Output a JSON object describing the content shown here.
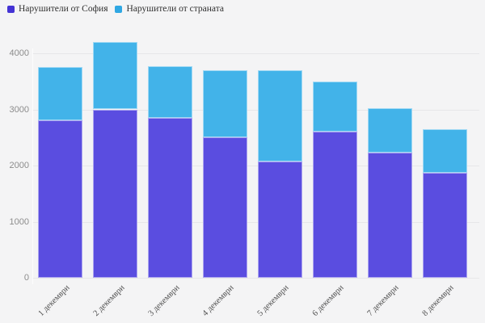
{
  "legend": {
    "items": [
      {
        "label": "Нарушители от София",
        "swatch_color": "#4433d4"
      },
      {
        "label": "Нарушители от страната",
        "swatch_color": "#2fa7e3"
      }
    ]
  },
  "chart_data": {
    "type": "bar",
    "stacked": true,
    "title": "",
    "xlabel": "",
    "ylabel": "",
    "categories": [
      "1 декември",
      "2 декември",
      "3 декември",
      "4 декември",
      "5 декември",
      "6 декември",
      "7 декември",
      "8 декември"
    ],
    "series": [
      {
        "name": "Нарушители от София",
        "color": "#5a4de0",
        "values": [
          2800,
          3000,
          2850,
          2500,
          2075,
          2600,
          2225,
          1875
        ]
      },
      {
        "name": "Нарушители от страната",
        "color": "#42b3e9",
        "values": [
          950,
          1200,
          925,
          1200,
          1625,
          900,
          800,
          775
        ]
      }
    ],
    "totals": [
      3750,
      4200,
      3775,
      3700,
      3700,
      3500,
      3025,
      2650
    ],
    "yticks": [
      0,
      1000,
      2000,
      3000,
      4000
    ],
    "ylim": [
      0,
      4300
    ],
    "grid": true,
    "legend_position": "top-left",
    "background_color": "#f4f4f5",
    "gridline_color": "#e7e7e9"
  }
}
